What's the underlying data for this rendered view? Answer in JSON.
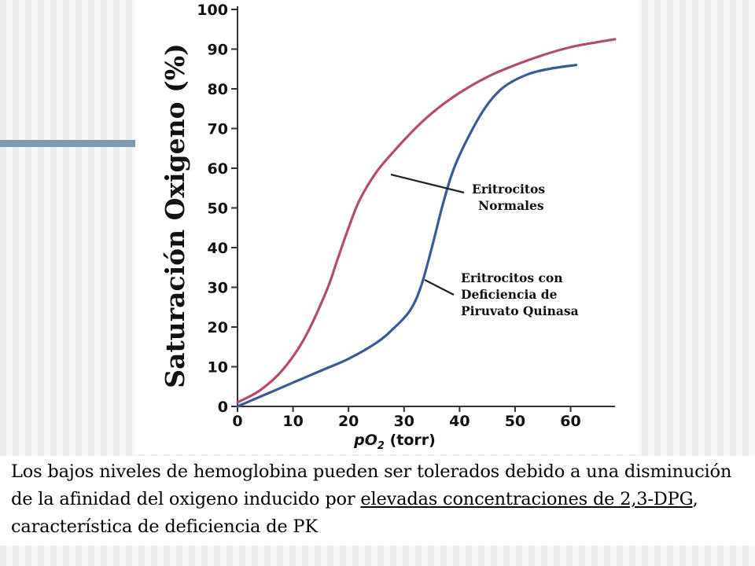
{
  "chart_data": {
    "type": "line",
    "xlabel_prefix": "pO",
    "xlabel_sub": "2",
    "xlabel_suffix": " (torr)",
    "ylabel": "Saturación Oxigeno (%)",
    "xlim": [
      0,
      68
    ],
    "ylim": [
      0,
      100
    ],
    "x_ticks": [
      0,
      10,
      20,
      30,
      40,
      50,
      60
    ],
    "y_ticks": [
      0,
      10,
      20,
      30,
      40,
      50,
      60,
      70,
      80,
      90,
      100
    ],
    "grid": false,
    "series": [
      {
        "name": "Eritrocitos Normales",
        "color": "#b44c6e",
        "x": [
          0,
          4,
          8,
          12,
          16,
          18,
          20,
          22,
          25,
          28,
          32,
          36,
          40,
          45,
          50,
          55,
          60,
          65,
          68
        ],
        "y": [
          1,
          4,
          9,
          17,
          29,
          37,
          45,
          52,
          59,
          64,
          70,
          75,
          79,
          83,
          86,
          88.5,
          90.5,
          91.8,
          92.5
        ]
      },
      {
        "name": "Eritrocitos con Deficiencia de Piruvato Quinasa",
        "color": "#3d5a98",
        "x": [
          0,
          5,
          10,
          15,
          20,
          25,
          28,
          31,
          33,
          35,
          37,
          39,
          42,
          45,
          48,
          52,
          56,
          61
        ],
        "y": [
          0,
          3,
          6,
          9,
          12,
          16,
          19.5,
          24,
          30,
          40,
          51,
          60,
          69,
          76,
          80.5,
          83.5,
          85,
          86
        ]
      }
    ],
    "annotations": [
      {
        "lines": [
          "Eritrocitos",
          "Normales"
        ]
      },
      {
        "lines": [
          "Eritrocitos con",
          "Deficiencia de",
          "Piruvato Quinasa"
        ]
      }
    ]
  },
  "caption": {
    "text_before": "Los bajos niveles de hemoglobina pueden ser tolerados debido a una disminución de la afinidad del oxigeno inducido por ",
    "underlined": "elevadas concentraciones de 2,3-DPG",
    "text_after": ", característica de deficiencia de PK"
  },
  "colors": {
    "accent_bar": "#7f98b5",
    "normal_curve": "#b44c6e",
    "pk_curve": "#3d5a98"
  }
}
